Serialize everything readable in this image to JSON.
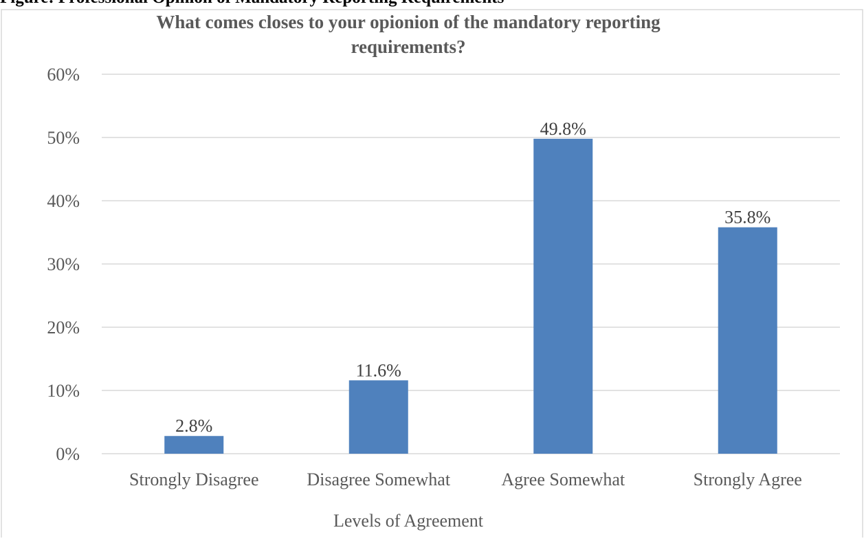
{
  "page_heading": "Figure: Professional Opinion of Mandatory Reporting Requirements",
  "chart_data": {
    "type": "bar",
    "title": "What comes closes to your opionion of the mandatory reporting requirements?",
    "title_lines": [
      "What comes closes to your opionion of the mandatory reporting",
      "requirements?"
    ],
    "xlabel": "Levels of Agreement",
    "ylabel": "",
    "categories": [
      "Strongly Disagree",
      "Disagree Somewhat",
      "Agree Somewhat",
      "Strongly Agree"
    ],
    "values": [
      2.8,
      11.6,
      49.8,
      35.8
    ],
    "data_labels": [
      "2.8%",
      "11.6%",
      "49.8%",
      "35.8%"
    ],
    "ylim": [
      0,
      60
    ],
    "yticks": [
      0,
      10,
      20,
      30,
      40,
      50,
      60
    ],
    "ytick_labels": [
      "0%",
      "10%",
      "20%",
      "30%",
      "40%",
      "50%",
      "60%"
    ],
    "grid": true,
    "legend": "none",
    "bar_color": "#4F81BD",
    "grid_color": "#D9D9D9"
  }
}
